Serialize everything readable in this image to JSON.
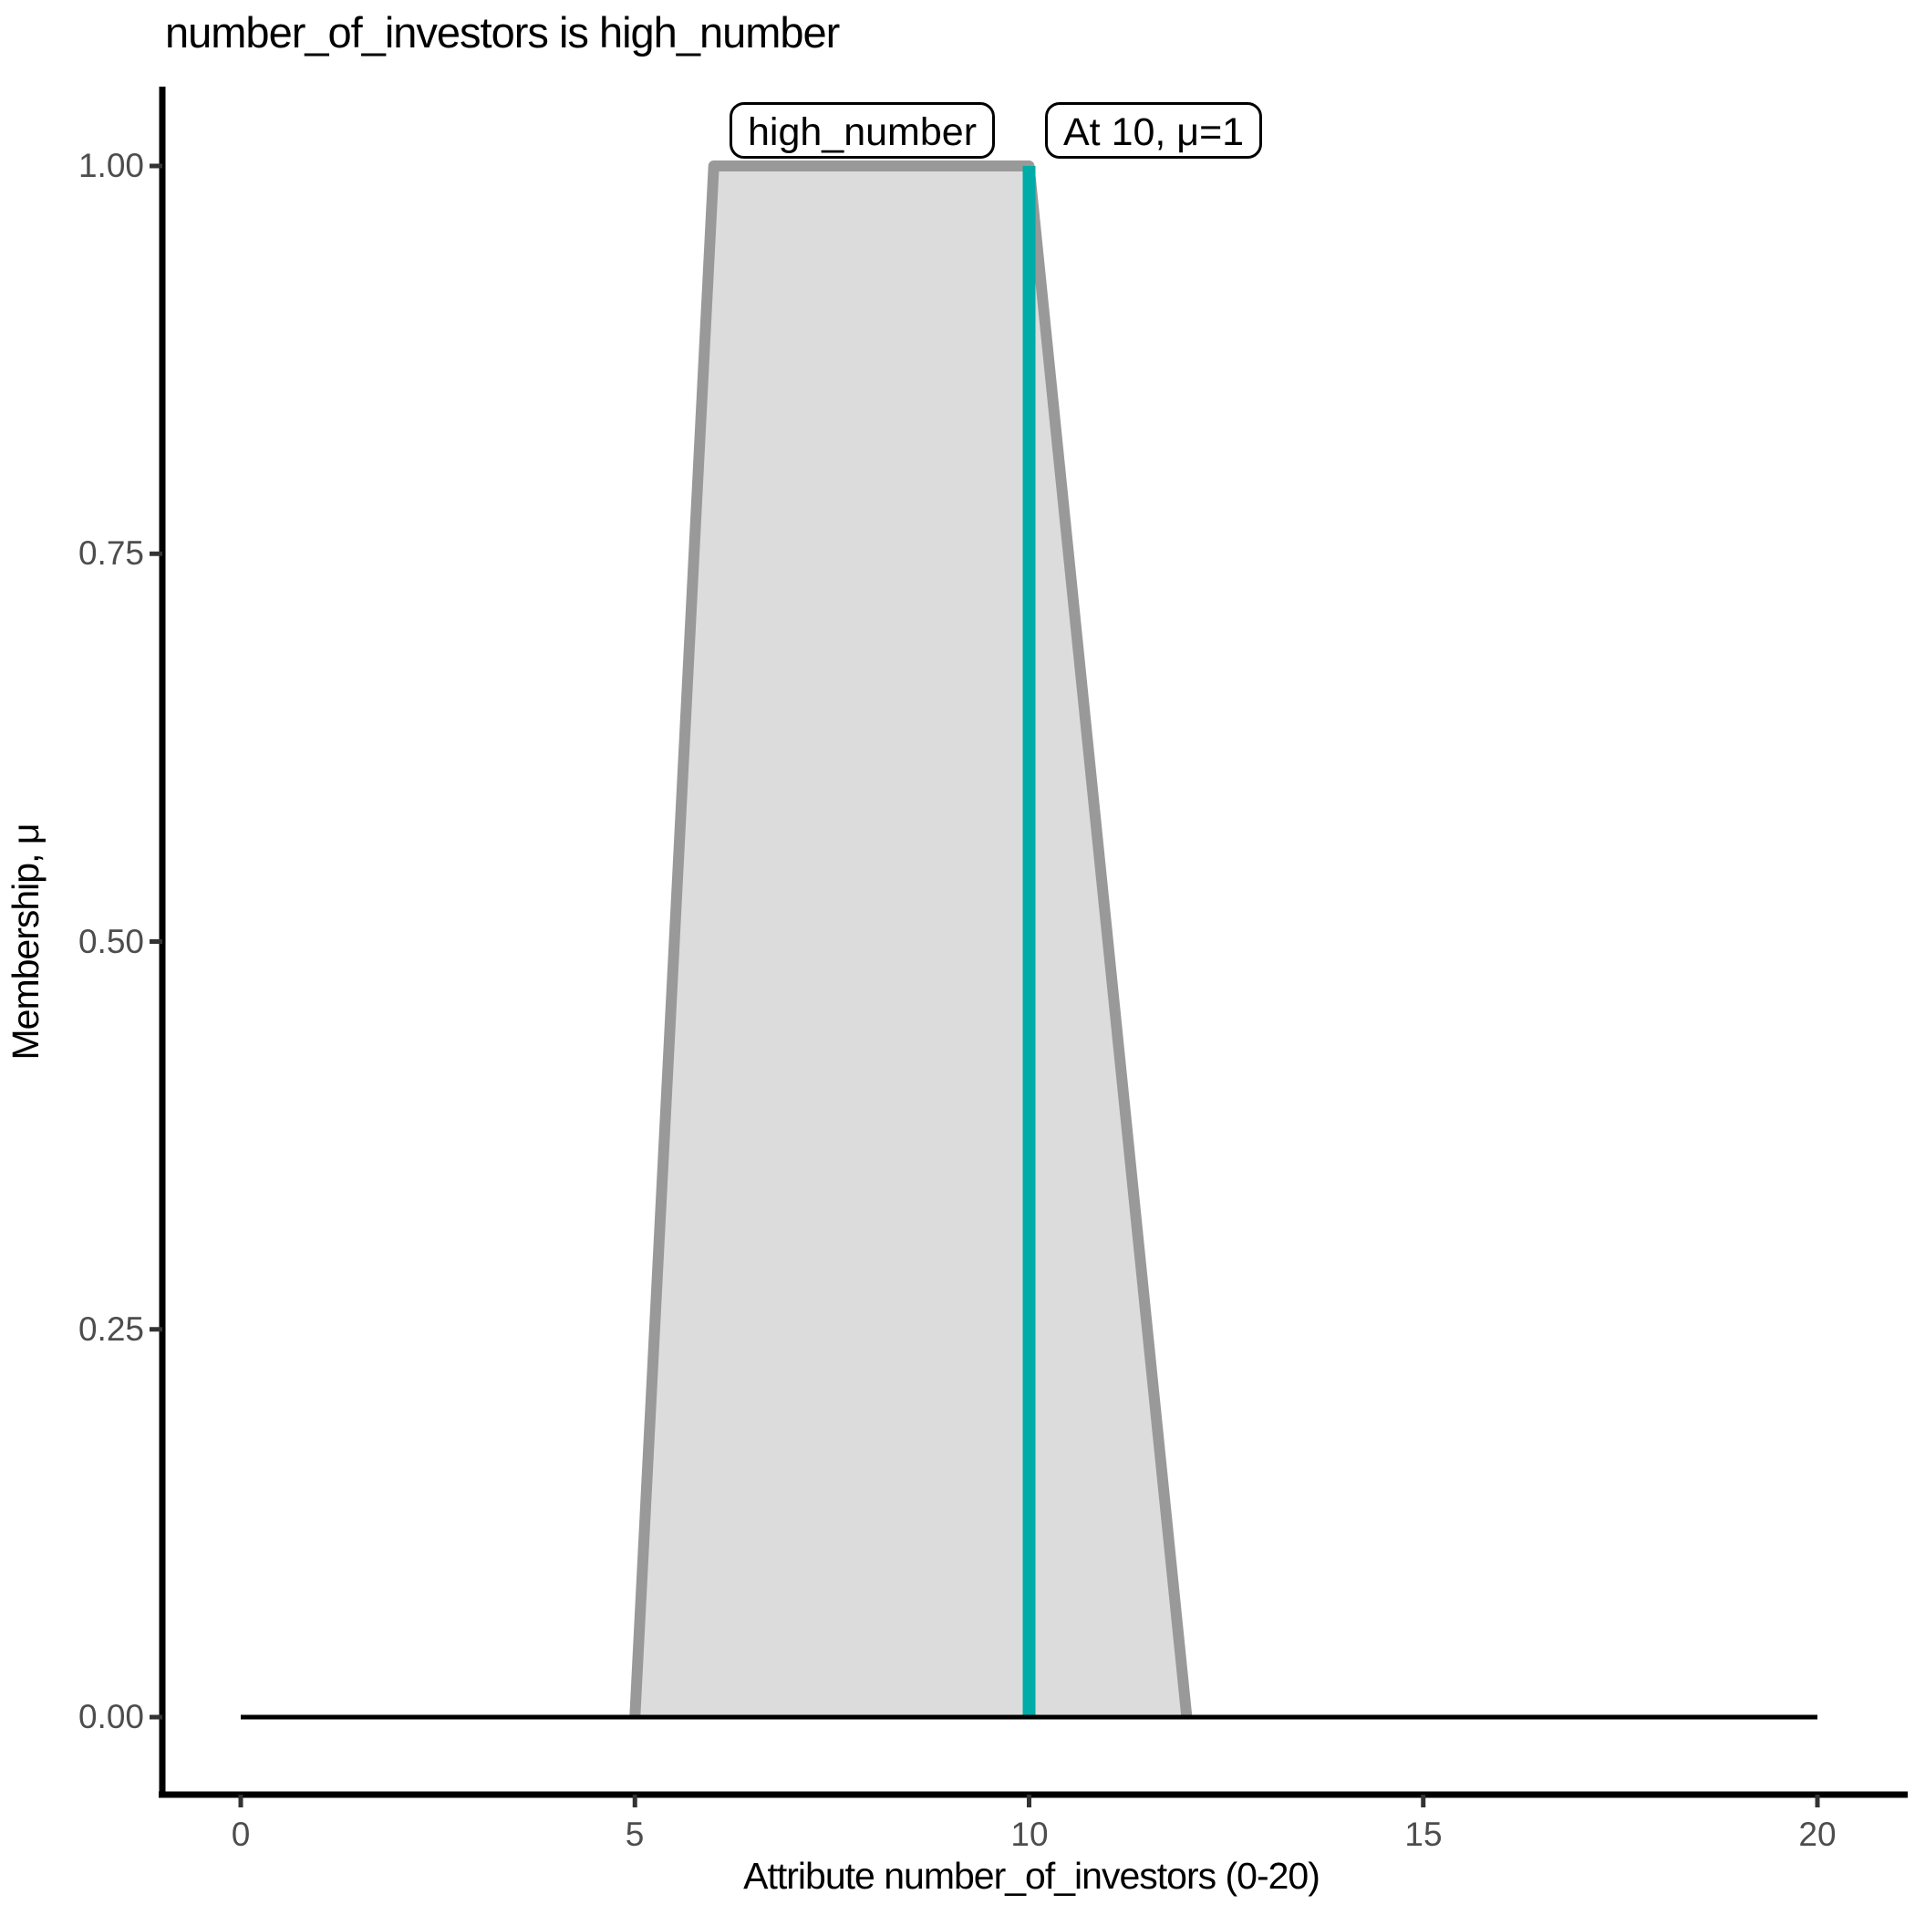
{
  "title": "number_of_investors is high_number",
  "annotations": {
    "set_label": "high_number",
    "marker_label": "At 10, μ=1"
  },
  "axes": {
    "x_title": "Attribute number_of_investors (0-20)",
    "y_title": "Membership, μ",
    "x_tick_labels": [
      "0",
      "5",
      "10",
      "15",
      "20"
    ],
    "y_tick_labels": [
      "1.00",
      "0.75",
      "0.50",
      "0.25",
      "0.00"
    ]
  },
  "colors": {
    "mf_fill": "#DCDCDC",
    "mf_border": "#999999",
    "marker_line": "#00ABA8",
    "baseline": "#000000",
    "axis_line": "#000000",
    "tick_mark": "#333333",
    "tick_label": "#4D4D4D",
    "text": "#000000"
  },
  "chart_data": {
    "type": "area",
    "subtype": "fuzzy_membership_function",
    "title": "number_of_investors is high_number",
    "xlabel": "Attribute number_of_investors (0-20)",
    "ylabel": "Membership, μ",
    "xlim": [
      0,
      20
    ],
    "ylim": [
      0,
      1
    ],
    "x_ticks": [
      0,
      5,
      10,
      15,
      20
    ],
    "y_ticks": [
      0.0,
      0.25,
      0.5,
      0.75,
      1.0
    ],
    "grid": false,
    "legend": false,
    "series": [
      {
        "name": "high_number",
        "shape": "trapezoid",
        "trapezoid_params": [
          5,
          6,
          10,
          12
        ],
        "x": [
          5,
          6,
          10,
          12
        ],
        "y": [
          0,
          1,
          1,
          0
        ]
      }
    ],
    "baseline": {
      "x": [
        0,
        20
      ],
      "y": [
        0,
        0
      ]
    },
    "marker": {
      "x": 10,
      "mu": 1,
      "label": "At 10, μ=1"
    }
  }
}
